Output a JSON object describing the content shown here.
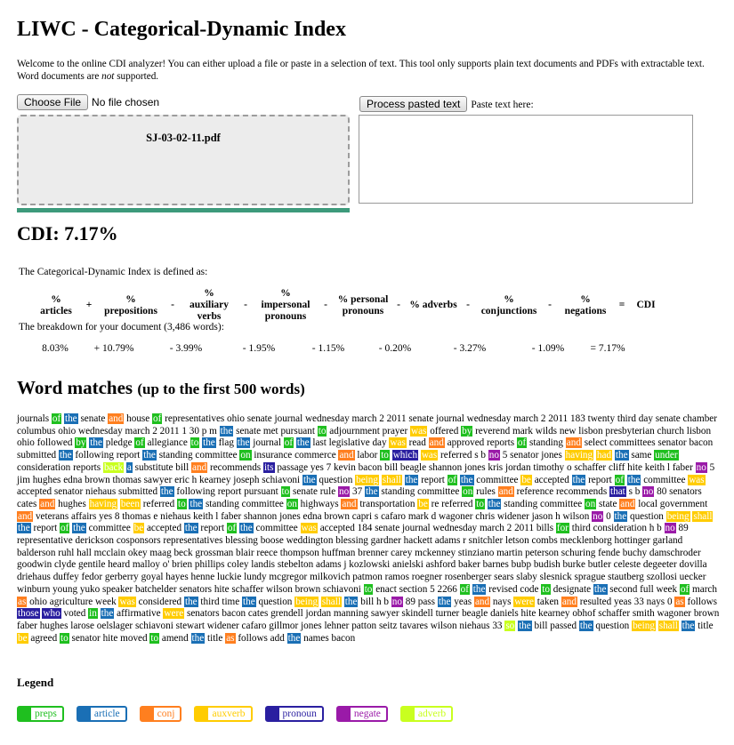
{
  "title": "LIWC - Categorical-Dynamic Index",
  "welcome": {
    "part1": "Welcome to the online CDI analyzer! You can either upload a file or paste in a selection of text. This tool only supports plain text documents and PDFs with extractable text. Word documents are ",
    "em": "not",
    "part2": " supported."
  },
  "upload": {
    "choose_label": "Choose File",
    "status": "No file chosen",
    "filename": "SJ-03-02-11.pdf",
    "progress": 1.0
  },
  "paste": {
    "button": "Process pasted text",
    "label": "Paste text here:",
    "value": ""
  },
  "cdi": "CDI: 7.17%",
  "definition": "The Categorical-Dynamic Index is defined as:",
  "formula": [
    "% articles",
    "+",
    "% prepositions",
    "-",
    "% auxiliary verbs",
    "-",
    "% impersonal pronouns",
    "-",
    "% personal pronouns",
    "-",
    "% adverbs",
    "-",
    "% conjunctions",
    "-",
    "% negations",
    "=",
    "CDI"
  ],
  "breakdown_label": "The breakdown for your document (3,486 words):",
  "breakdown": [
    "8.03%",
    "+ 10.79%",
    "- 3.99%",
    "- 1.95%",
    "- 1.15%",
    "- 0.20%",
    "- 3.27%",
    "- 1.09%",
    "= 7.17%"
  ],
  "matches_title": "Word matches",
  "matches_sub": "(up to the first 500 words)",
  "words": [
    [
      "journals",
      ""
    ],
    [
      "of",
      "preps"
    ],
    [
      "the",
      "article"
    ],
    [
      "senate",
      ""
    ],
    [
      "and",
      "conj"
    ],
    [
      "house",
      ""
    ],
    [
      "of",
      "preps"
    ],
    [
      "representatives ohio senate journal wednesday march 2 2011 senate journal wednesday march 2 2011 183 twenty third day senate chamber columbus ohio wednesday march 2 2011 1 30 p m",
      ""
    ],
    [
      "the",
      "article"
    ],
    [
      "senate met pursuant",
      ""
    ],
    [
      "to",
      "preps"
    ],
    [
      "adjournment prayer",
      ""
    ],
    [
      "was",
      "auxverb"
    ],
    [
      "offered",
      ""
    ],
    [
      "by",
      "preps"
    ],
    [
      "reverend mark wilds new lisbon presbyterian church lisbon ohio followed",
      ""
    ],
    [
      "by",
      "preps"
    ],
    [
      "the",
      "article"
    ],
    [
      "pledge",
      ""
    ],
    [
      "of",
      "preps"
    ],
    [
      "allegiance",
      ""
    ],
    [
      "to",
      "preps"
    ],
    [
      "the",
      "article"
    ],
    [
      "flag",
      ""
    ],
    [
      "the",
      "article"
    ],
    [
      "journal",
      ""
    ],
    [
      "of",
      "preps"
    ],
    [
      "the",
      "article"
    ],
    [
      "last legislative day",
      ""
    ],
    [
      "was",
      "auxverb"
    ],
    [
      "read",
      ""
    ],
    [
      "and",
      "conj"
    ],
    [
      "approved reports",
      ""
    ],
    [
      "of",
      "preps"
    ],
    [
      "standing",
      ""
    ],
    [
      "and",
      "conj"
    ],
    [
      "select committees senator bacon submitted",
      ""
    ],
    [
      "the",
      "article"
    ],
    [
      "following report",
      ""
    ],
    [
      "the",
      "article"
    ],
    [
      "standing committee",
      ""
    ],
    [
      "on",
      "preps"
    ],
    [
      "insurance commerce",
      ""
    ],
    [
      "and",
      "conj"
    ],
    [
      "labor",
      ""
    ],
    [
      "to",
      "preps"
    ],
    [
      "which",
      "pronoun"
    ],
    [
      "was",
      "auxverb"
    ],
    [
      "referred s b",
      ""
    ],
    [
      "no",
      "negate"
    ],
    [
      "5 senator jones",
      ""
    ],
    [
      "having",
      "auxverb"
    ],
    [
      "had",
      "auxverb"
    ],
    [
      "the",
      "article"
    ],
    [
      "same",
      ""
    ],
    [
      "under",
      "preps"
    ],
    [
      "consideration reports",
      ""
    ],
    [
      "back",
      "adverb"
    ],
    [
      "a",
      "article"
    ],
    [
      "substitute bill",
      ""
    ],
    [
      "and",
      "conj"
    ],
    [
      "recommends",
      ""
    ],
    [
      "its",
      "pronoun"
    ],
    [
      "passage yes 7 kevin bacon bill beagle shannon jones kris jordan timothy o schaffer cliff hite keith l faber",
      ""
    ],
    [
      "no",
      "negate"
    ],
    [
      "5 jim hughes edna brown thomas sawyer eric h kearney joseph schiavoni",
      ""
    ],
    [
      "the",
      "article"
    ],
    [
      "question",
      ""
    ],
    [
      "being",
      "auxverb"
    ],
    [
      "shall",
      "auxverb"
    ],
    [
      "the",
      "article"
    ],
    [
      "report",
      ""
    ],
    [
      "of",
      "preps"
    ],
    [
      "the",
      "article"
    ],
    [
      "committee",
      ""
    ],
    [
      "be",
      "auxverb"
    ],
    [
      "accepted",
      ""
    ],
    [
      "the",
      "article"
    ],
    [
      "report",
      ""
    ],
    [
      "of",
      "preps"
    ],
    [
      "the",
      "article"
    ],
    [
      "committee",
      ""
    ],
    [
      "was",
      "auxverb"
    ],
    [
      "accepted senator niehaus submitted",
      ""
    ],
    [
      "the",
      "article"
    ],
    [
      "following report pursuant",
      ""
    ],
    [
      "to",
      "preps"
    ],
    [
      "senate rule",
      ""
    ],
    [
      "no",
      "negate"
    ],
    [
      "37",
      ""
    ],
    [
      "the",
      "article"
    ],
    [
      "standing committee",
      ""
    ],
    [
      "on",
      "preps"
    ],
    [
      "rules",
      ""
    ],
    [
      "and",
      "conj"
    ],
    [
      "reference recommends",
      ""
    ],
    [
      "that",
      "pronoun"
    ],
    [
      "s b",
      ""
    ],
    [
      "no",
      "negate"
    ],
    [
      "80 senators cates",
      ""
    ],
    [
      "and",
      "conj"
    ],
    [
      "hughes",
      ""
    ],
    [
      "having",
      "auxverb"
    ],
    [
      "been",
      "auxverb"
    ],
    [
      "referred",
      ""
    ],
    [
      "to",
      "preps"
    ],
    [
      "the",
      "article"
    ],
    [
      "standing committee",
      ""
    ],
    [
      "on",
      "preps"
    ],
    [
      "highways",
      ""
    ],
    [
      "and",
      "conj"
    ],
    [
      "transportation",
      ""
    ],
    [
      "be",
      "auxverb"
    ],
    [
      "re referred",
      ""
    ],
    [
      "to",
      "preps"
    ],
    [
      "the",
      "article"
    ],
    [
      "standing committee",
      ""
    ],
    [
      "on",
      "preps"
    ],
    [
      "state",
      ""
    ],
    [
      "and",
      "conj"
    ],
    [
      "local government",
      ""
    ],
    [
      "and",
      "conj"
    ],
    [
      "veterans affairs yes 8 thomas e niehaus keith l faber shannon jones edna brown capri s cafaro mark d wagoner chris widener jason h wilson",
      ""
    ],
    [
      "no",
      "negate"
    ],
    [
      "0",
      ""
    ],
    [
      "the",
      "article"
    ],
    [
      "question",
      ""
    ],
    [
      "being",
      "auxverb"
    ],
    [
      "shall",
      "auxverb"
    ],
    [
      "the",
      "article"
    ],
    [
      "report",
      ""
    ],
    [
      "of",
      "preps"
    ],
    [
      "the",
      "article"
    ],
    [
      "committee",
      ""
    ],
    [
      "be",
      "auxverb"
    ],
    [
      "accepted",
      ""
    ],
    [
      "the",
      "article"
    ],
    [
      "report",
      ""
    ],
    [
      "of",
      "preps"
    ],
    [
      "the",
      "article"
    ],
    [
      "committee",
      ""
    ],
    [
      "was",
      "auxverb"
    ],
    [
      "accepted 184 senate journal wednesday march 2 2011 bills",
      ""
    ],
    [
      "for",
      "preps"
    ],
    [
      "third consideration h b",
      ""
    ],
    [
      "no",
      "negate"
    ],
    [
      "89 representative derickson cosponsors representatives blessing boose weddington blessing gardner hackett adams r snitchler letson combs mecklenborg hottinger garland balderson ruhl hall mcclain okey maag beck grossman blair reece thompson huffman brenner carey mckenney stinziano martin peterson schuring fende buchy damschroder goodwin clyde gentile heard malloy o' brien phillips coley landis stebelton adams j kozlowski anielski ashford baker barnes bubp budish burke butler celeste degeeter dovilla driehaus duffey fedor gerberry goyal hayes henne luckie lundy mcgregor milkovich patmon ramos roegner rosenberger sears slaby slesnick sprague stautberg szollosi uecker winburn young yuko speaker batchelder senators hite schaffer wilson brown schiavoni",
      ""
    ],
    [
      "to",
      "preps"
    ],
    [
      "enact section 5 2266",
      ""
    ],
    [
      "of",
      "preps"
    ],
    [
      "the",
      "article"
    ],
    [
      "revised code",
      ""
    ],
    [
      "to",
      "preps"
    ],
    [
      "designate",
      ""
    ],
    [
      "the",
      "article"
    ],
    [
      "second full week",
      ""
    ],
    [
      "of",
      "preps"
    ],
    [
      "march",
      ""
    ],
    [
      "as",
      "conj"
    ],
    [
      "ohio agriculture week",
      ""
    ],
    [
      "was",
      "auxverb"
    ],
    [
      "considered",
      ""
    ],
    [
      "the",
      "article"
    ],
    [
      "third time",
      ""
    ],
    [
      "the",
      "article"
    ],
    [
      "question",
      ""
    ],
    [
      "being",
      "auxverb"
    ],
    [
      "shall",
      "auxverb"
    ],
    [
      "the",
      "article"
    ],
    [
      "bill h b",
      ""
    ],
    [
      "no",
      "negate"
    ],
    [
      "89 pass",
      ""
    ],
    [
      "the",
      "article"
    ],
    [
      "yeas",
      ""
    ],
    [
      "and",
      "conj"
    ],
    [
      "nays",
      ""
    ],
    [
      "were",
      "auxverb"
    ],
    [
      "taken",
      ""
    ],
    [
      "and",
      "conj"
    ],
    [
      "resulted yeas 33 nays 0",
      ""
    ],
    [
      "as",
      "conj"
    ],
    [
      "follows",
      ""
    ],
    [
      "those",
      "pronoun"
    ],
    [
      "who",
      "pronoun"
    ],
    [
      "voted",
      ""
    ],
    [
      "in",
      "preps"
    ],
    [
      "the",
      "article"
    ],
    [
      "affirmative",
      ""
    ],
    [
      "were",
      "auxverb"
    ],
    [
      "senators bacon cates grendell jordan manning sawyer skindell turner beagle daniels hite kearney obhof schaffer smith wagoner brown faber hughes larose oelslager schiavoni stewart widener cafaro gillmor jones lehner patton seitz tavares wilson niehaus 33",
      ""
    ],
    [
      "so",
      "adverb"
    ],
    [
      "the",
      "article"
    ],
    [
      "bill passed",
      ""
    ],
    [
      "the",
      "article"
    ],
    [
      "question",
      ""
    ],
    [
      "being",
      "auxverb"
    ],
    [
      "shall",
      "auxverb"
    ],
    [
      "the",
      "article"
    ],
    [
      "title",
      ""
    ],
    [
      "be",
      "auxverb"
    ],
    [
      "agreed",
      ""
    ],
    [
      "to",
      "preps"
    ],
    [
      "senator hite moved",
      ""
    ],
    [
      "to",
      "preps"
    ],
    [
      "amend",
      ""
    ],
    [
      "the",
      "article"
    ],
    [
      "title",
      ""
    ],
    [
      "as",
      "conj"
    ],
    [
      "follows add",
      ""
    ],
    [
      "the",
      "article"
    ],
    [
      "names bacon",
      ""
    ]
  ],
  "legend_title": "Legend",
  "legend": [
    {
      "key": "preps",
      "label": "preps",
      "color": "#1fbf1f"
    },
    {
      "key": "article",
      "label": "article",
      "color": "#1a6fb5"
    },
    {
      "key": "conj",
      "label": "conj",
      "color": "#ff7f1f"
    },
    {
      "key": "auxverb",
      "label": "auxverb",
      "color": "#ffcc00"
    },
    {
      "key": "pronoun",
      "label": "pronoun",
      "color": "#2a1fa0"
    },
    {
      "key": "negate",
      "label": "negate",
      "color": "#9a1aa8"
    },
    {
      "key": "adverb",
      "label": "adverb",
      "color": "#c9ff1f"
    }
  ]
}
